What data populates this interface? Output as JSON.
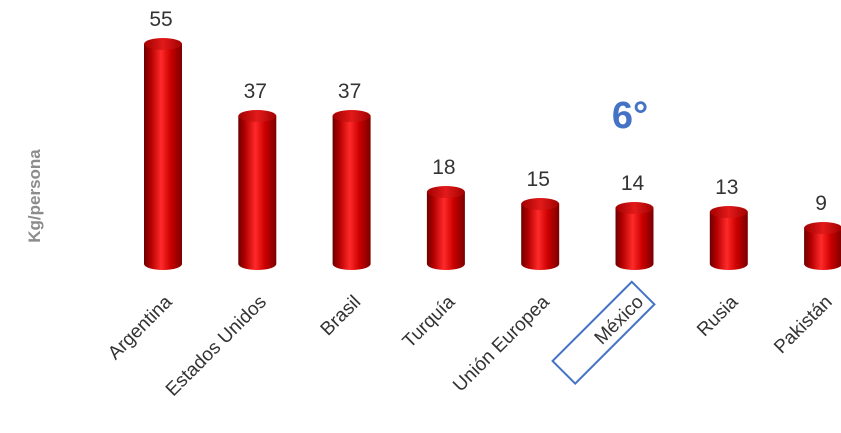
{
  "chart_data": {
    "type": "bar",
    "ylabel": "Kg/persona",
    "categories": [
      "Argentina",
      "Estados Unidos",
      "Brasil",
      "Turquía",
      "Unión Europea",
      "México",
      "Rusia",
      "Pakistán"
    ],
    "values": [
      55,
      37,
      37,
      18,
      15,
      14,
      13,
      9
    ],
    "highlight_category": "México",
    "annotation": "6°",
    "bar_color": "#c00000",
    "highlight_color": "#4472c4",
    "grid": false,
    "legend": "none"
  }
}
